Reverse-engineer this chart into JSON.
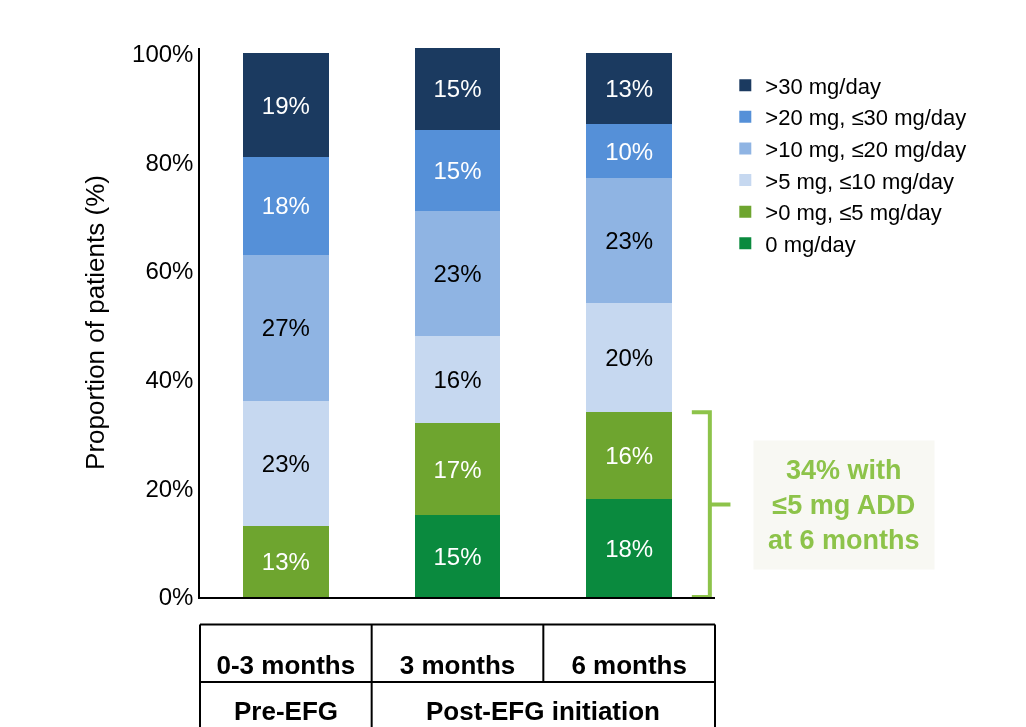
{
  "chart_data": {
    "type": "bar",
    "stacked": true,
    "categories": [
      "0-3 months",
      "3 months",
      "6 months"
    ],
    "ylabel": "Proportion of patients (%)",
    "ylim": [
      0,
      101
    ],
    "yticks": [
      {
        "value": 0,
        "label": "0%"
      },
      {
        "value": 20,
        "label": "20%"
      },
      {
        "value": 40,
        "label": "40%"
      },
      {
        "value": 60,
        "label": "60%"
      },
      {
        "value": 80,
        "label": "80%"
      },
      {
        "value": 100,
        "label": "100%"
      }
    ],
    "series": [
      {
        "name": "0 mg/day",
        "color": "#0a8a3e",
        "values": [
          null,
          15,
          18
        ],
        "value_labels": [
          null,
          "15%",
          "18%"
        ]
      },
      {
        "name": ">0 mg, ≤5 mg/day",
        "color": "#6ea52f",
        "values": [
          13,
          17,
          16
        ],
        "value_labels": [
          "13%",
          "17%",
          "16%"
        ]
      },
      {
        "name": ">5 mg, ≤10 mg/day",
        "color": "#c6d8f0",
        "values": [
          23,
          16,
          20
        ],
        "value_labels": [
          "23%",
          "16%",
          "20%"
        ]
      },
      {
        "name": ">10 mg, ≤20 mg/day",
        "color": "#8fb4e3",
        "values": [
          27,
          23,
          23
        ],
        "value_labels": [
          "27%",
          "23%",
          "23%"
        ]
      },
      {
        "name": ">20 mg, ≤30 mg/day",
        "color": "#5590d8",
        "values": [
          18,
          15,
          10
        ],
        "value_labels": [
          "18%",
          "15%",
          "10%"
        ]
      },
      {
        "name": ">30 mg/day",
        "color": "#1b3a60",
        "values": [
          19,
          15,
          13
        ],
        "value_labels": [
          "19%",
          "15%",
          "13%"
        ]
      }
    ],
    "annotations": [
      "Pre-EFG",
      "Post-EFG initiation",
      "34% with\n≤5 mg ADD\nat 6 months"
    ],
    "grid": false,
    "legend": "right"
  }
}
